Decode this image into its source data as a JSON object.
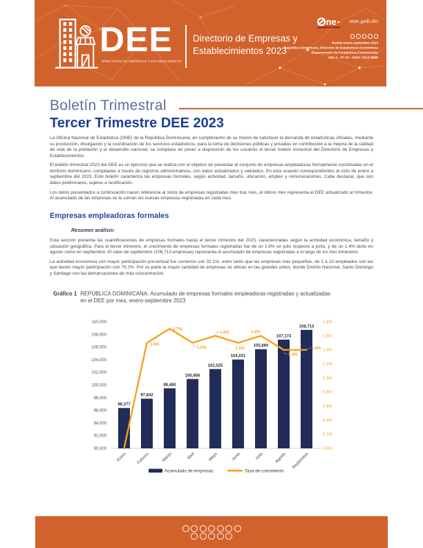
{
  "header": {
    "acronym": "DEE",
    "logo_tagline": "DIRECTORIO DE EMPRESAS Y ESTABLECIMIENTO",
    "product_title_line1": "Directorio de Empresas y",
    "product_title_line2": "Establecimientos 2023",
    "one_brand_text": "ne",
    "one_site": "one.gob.do",
    "meta_line1": "Boletín enero-septiembre 2023",
    "meta_line2": "República Dominicana, Dirección de Estadísticas Económicas",
    "meta_line3": "Departamento de Estadísticas Estructurales",
    "meta_line4": "Año 1 - Nº 03 - ISSN: 2412-5998"
  },
  "intro": {
    "kicker": "Boletín Trimestral",
    "title": "Tercer Trimestre DEE 2023",
    "p1": "La Oficina Nacional de Estadística (ONE) de la República Dominicana, en cumplimiento de su misión de satisfacer la demanda de estadísticas oficiales, mediante su producción, divulgación y la coordinación de los servicios estadísticos, para la toma de decisiones públicas y privadas en contribución a la mejora de la calidad de vida de la población y el desarrollo nacional, se complace en poner a disposición de los usuarios el tercer boletín trimestral del Directorio de Empresas y Establecimientos.",
    "p2": "El boletín trimestral 2023 del DEE es un ejercicio que se realiza con el objetivo de presentar el conjunto de empresas empleadoras formalmente constituidas en el territorio dominicano; compiladas a través de registros administrativos, con datos actualizados y validados. En esta ocasión correspondientes al ciclo de enero a septiembre del 2023. Este boletín caracteriza las empresas formales, según actividad, tamaño, ubicación, empleo y remuneraciones. Cabe destacar, que son datos preliminares, sujetos a rectificación.",
    "p3": "Los datos presentados a continuación hacen referencia al stock de empresas registradas mes tras mes, el último mes representa el DEE actualizado al trimestre. Al acumulado de las empresas se le suman las nuevas empresas registradas en cada mes."
  },
  "section": {
    "heading": "Empresas empleadoras formales",
    "subheading": "Resumen análisis:",
    "p1": "Esta sección presenta las cuantificaciones de empresas formales hasta el tercer trimestre del 2023, caracterizadas según la actividad económica, tamaño y ubicación geográfica. Para el tercer trimestre, el crecimiento de empresas formales registradas fue de un 1.6% en julio respecto a junio, y de un 1.4% tanto en agosto como en septiembre.  El valor de septiembre (108,713 empresas) representa el acumulado de empresas registradas a lo largo de los tres trimestres.",
    "p2": "La actividad económica con mayor participación porcentual fue comercio con 32.1%, entre tanto que las empresas más pequeñas, de 1 a 10 empleados son las que tienen mayor participación con 79.2%. Por su parte la mayor cantidad de empresas se ubican en las grandes urbes, donde Distrito Nacional, Santo Domingo y Santiago son las demarcaciones de más concentración."
  },
  "chart_data": {
    "type": "bar",
    "label": "Gráfico 1",
    "title": "REPÚBLICA DOMINICANA: Acumulado de empresas formales empleadoras registradas y actualizadas en el DEE por mes, enero-septiembre 2023",
    "categories": [
      "Enero",
      "Febrero",
      "Marzo",
      "Abril",
      "Mayo",
      "Junio",
      "Julio",
      "Agosto",
      "Septiembre"
    ],
    "series": [
      {
        "name": "Acumulado de empresas",
        "type": "bar",
        "axis": "left",
        "color": "#212C58",
        "values": [
          96377,
          97842,
          99480,
          100956,
          102525,
          104031,
          105660,
          107173,
          108713
        ]
      },
      {
        "name": "Tasa de crecimiento",
        "type": "line",
        "axis": "right",
        "color": "#F5A21D",
        "values_pct": [
          0.0,
          1.5,
          1.7,
          1.5,
          1.6,
          1.5,
          1.6,
          1.4,
          1.4
        ]
      }
    ],
    "left_axis": {
      "min": 90000,
      "max": 110000,
      "step": 2000
    },
    "right_axis": {
      "min": 0.0,
      "max": 1.8,
      "step": 0.2,
      "suffix": "%"
    },
    "legend_position": "bottom",
    "grid": false
  },
  "colors": {
    "banner_orange": "#D2622C",
    "accent_orange": "#F5A21D",
    "bar_navy": "#212C58",
    "title_blue": "#1B3E92",
    "kicker_blue": "#5E6D9D",
    "section_blue": "#2448A5"
  }
}
